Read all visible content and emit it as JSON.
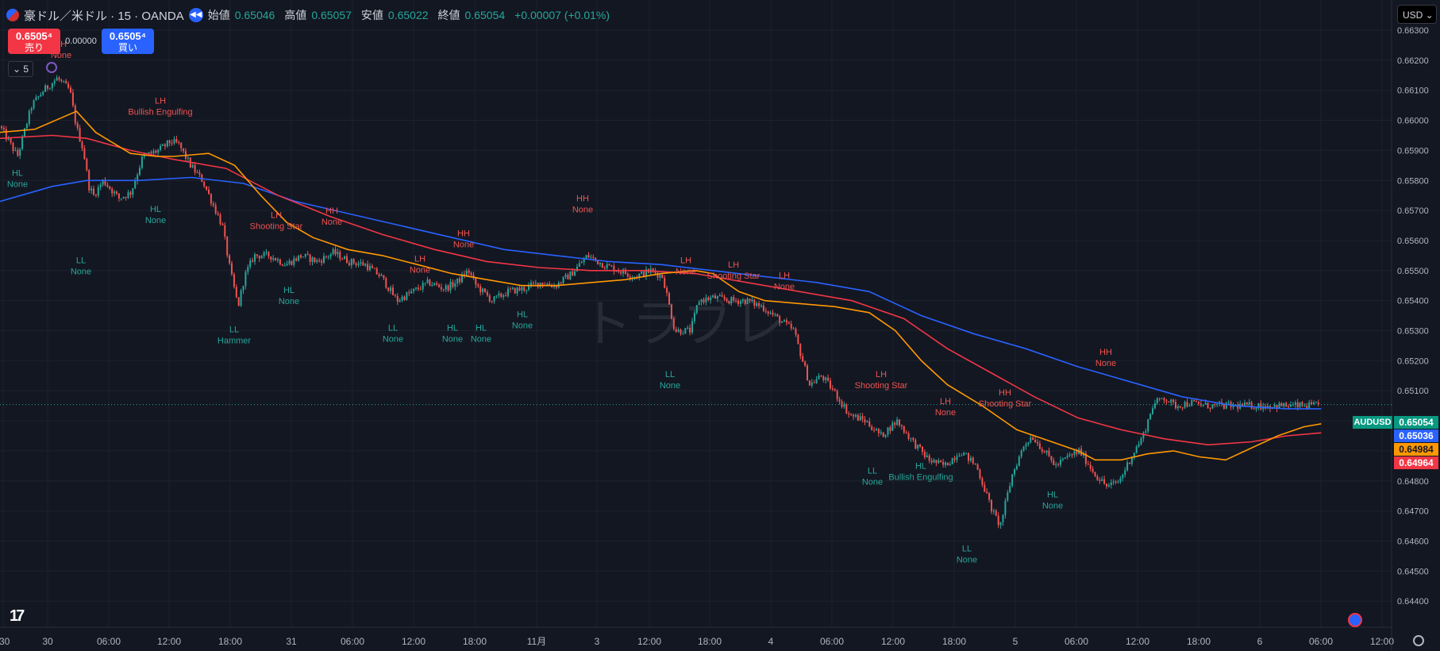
{
  "header": {
    "symbol": "豪ドル／米ドル · 15 · OANDA",
    "ohlc": [
      {
        "label": "始値",
        "value": "0.65046"
      },
      {
        "label": "高値",
        "value": "0.65057"
      },
      {
        "label": "安値",
        "value": "0.65022"
      },
      {
        "label": "終値",
        "value": "0.65054"
      }
    ],
    "change": "+0.00007 (+0.01%)"
  },
  "trade": {
    "sell_price": "0.6505⁴",
    "sell_label": "売り",
    "spread": "0.00000",
    "buy_price": "0.6505⁴",
    "buy_label": "買い"
  },
  "interval_value": "5",
  "currency_selector": "USD",
  "logo_text": "17",
  "watermark": "トラブレ",
  "price_labels": {
    "symbol": "AUDUSD",
    "last": "0.65054",
    "ma_blue": "0.65036",
    "ma_orange": "0.64984",
    "ma_red": "0.64964"
  },
  "colors": {
    "background": "#131722",
    "grid": "#1e222d",
    "up": "#26a69a",
    "down": "#ef5350",
    "ma_fast": "#ff9800",
    "ma_mid": "#f23645",
    "ma_slow": "#2962ff"
  },
  "chart_data": {
    "type": "candlestick",
    "ylim": [
      0.6444,
      0.6631
    ],
    "y_ticks": [
      "0.66300",
      "0.66200",
      "0.66100",
      "0.66000",
      "0.65900",
      "0.65800",
      "0.65700",
      "0.65600",
      "0.65500",
      "0.65400",
      "0.65300",
      "0.65200",
      "0.65100",
      "0.65000",
      "0.64900",
      "0.64800",
      "0.64700",
      "0.64600",
      "0.64500",
      "0.64400"
    ],
    "x_ticks": [
      ":30",
      "30",
      "06:00",
      "12:00",
      "18:00",
      "31",
      "06:00",
      "12:00",
      "18:00",
      "11月",
      "3",
      "12:00",
      "18:00",
      "4",
      "06:00",
      "12:00",
      "18:00",
      "5",
      "06:00",
      "12:00",
      "18:00",
      "6",
      "06:00",
      "12:00"
    ],
    "price_path": [
      [
        0,
        0.6598
      ],
      [
        22,
        0.6588
      ],
      [
        40,
        0.6605
      ],
      [
        55,
        0.661
      ],
      [
        72,
        0.6614
      ],
      [
        88,
        0.661
      ],
      [
        96,
        0.6598
      ],
      [
        105,
        0.659
      ],
      [
        112,
        0.6578
      ],
      [
        118,
        0.6575
      ],
      [
        130,
        0.658
      ],
      [
        150,
        0.6574
      ],
      [
        165,
        0.6576
      ],
      [
        180,
        0.6588
      ],
      [
        200,
        0.659
      ],
      [
        215,
        0.6593
      ],
      [
        225,
        0.6592
      ],
      [
        240,
        0.6585
      ],
      [
        255,
        0.658
      ],
      [
        265,
        0.6574
      ],
      [
        280,
        0.6565
      ],
      [
        290,
        0.655
      ],
      [
        300,
        0.6538
      ],
      [
        308,
        0.6548
      ],
      [
        320,
        0.6555
      ],
      [
        340,
        0.6555
      ],
      [
        360,
        0.6552
      ],
      [
        380,
        0.6555
      ],
      [
        400,
        0.6553
      ],
      [
        420,
        0.6556
      ],
      [
        440,
        0.6553
      ],
      [
        460,
        0.6552
      ],
      [
        480,
        0.6548
      ],
      [
        500,
        0.654
      ],
      [
        520,
        0.6543
      ],
      [
        540,
        0.6546
      ],
      [
        560,
        0.6544
      ],
      [
        575,
        0.6546
      ],
      [
        590,
        0.655
      ],
      [
        600,
        0.6545
      ],
      [
        620,
        0.654
      ],
      [
        640,
        0.6543
      ],
      [
        660,
        0.6544
      ],
      [
        680,
        0.6546
      ],
      [
        700,
        0.6545
      ],
      [
        720,
        0.6549
      ],
      [
        740,
        0.6555
      ],
      [
        760,
        0.6552
      ],
      [
        780,
        0.655
      ],
      [
        800,
        0.6548
      ],
      [
        820,
        0.655
      ],
      [
        835,
        0.6548
      ],
      [
        850,
        0.653
      ],
      [
        870,
        0.653
      ],
      [
        880,
        0.654
      ],
      [
        900,
        0.6541
      ],
      [
        920,
        0.654
      ],
      [
        940,
        0.654
      ],
      [
        960,
        0.6538
      ],
      [
        980,
        0.6534
      ],
      [
        1000,
        0.653
      ],
      [
        1020,
        0.6512
      ],
      [
        1035,
        0.6515
      ],
      [
        1050,
        0.651
      ],
      [
        1070,
        0.6502
      ],
      [
        1090,
        0.65
      ],
      [
        1110,
        0.6495
      ],
      [
        1130,
        0.65
      ],
      [
        1150,
        0.6493
      ],
      [
        1170,
        0.6487
      ],
      [
        1190,
        0.6485
      ],
      [
        1210,
        0.649
      ],
      [
        1230,
        0.6485
      ],
      [
        1250,
        0.647
      ],
      [
        1260,
        0.6465
      ],
      [
        1275,
        0.6482
      ],
      [
        1290,
        0.6492
      ],
      [
        1300,
        0.6495
      ],
      [
        1315,
        0.649
      ],
      [
        1330,
        0.6485
      ],
      [
        1345,
        0.6488
      ],
      [
        1360,
        0.649
      ],
      [
        1380,
        0.6482
      ],
      [
        1395,
        0.6478
      ],
      [
        1410,
        0.648
      ],
      [
        1425,
        0.6488
      ],
      [
        1440,
        0.6495
      ],
      [
        1452,
        0.6505
      ],
      [
        1465,
        0.6508
      ],
      [
        1480,
        0.6505
      ],
      [
        1500,
        0.6506
      ],
      [
        1520,
        0.6505
      ]
    ],
    "ma_fast": [
      [
        0,
        0.6596
      ],
      [
        40,
        0.6597
      ],
      [
        88,
        0.6603
      ],
      [
        110,
        0.6596
      ],
      [
        150,
        0.6589
      ],
      [
        180,
        0.6588
      ],
      [
        200,
        0.6588
      ],
      [
        240,
        0.6589
      ],
      [
        270,
        0.6585
      ],
      [
        300,
        0.6575
      ],
      [
        330,
        0.6566
      ],
      [
        360,
        0.6561
      ],
      [
        400,
        0.6557
      ],
      [
        440,
        0.6555
      ],
      [
        480,
        0.6552
      ],
      [
        520,
        0.6549
      ],
      [
        560,
        0.6547
      ],
      [
        600,
        0.6545
      ],
      [
        640,
        0.6545
      ],
      [
        680,
        0.6546
      ],
      [
        720,
        0.6547
      ],
      [
        760,
        0.6549
      ],
      [
        800,
        0.655
      ],
      [
        820,
        0.6549
      ],
      [
        850,
        0.6543
      ],
      [
        880,
        0.654
      ],
      [
        920,
        0.6539
      ],
      [
        960,
        0.6538
      ],
      [
        1000,
        0.6536
      ],
      [
        1030,
        0.653
      ],
      [
        1060,
        0.652
      ],
      [
        1090,
        0.6512
      ],
      [
        1130,
        0.6505
      ],
      [
        1170,
        0.6497
      ],
      [
        1210,
        0.6493
      ],
      [
        1240,
        0.649
      ],
      [
        1260,
        0.6487
      ],
      [
        1290,
        0.6487
      ],
      [
        1320,
        0.6489
      ],
      [
        1350,
        0.649
      ],
      [
        1380,
        0.6488
      ],
      [
        1410,
        0.6487
      ],
      [
        1440,
        0.6491
      ],
      [
        1470,
        0.6495
      ],
      [
        1500,
        0.6498
      ],
      [
        1520,
        0.6499
      ]
    ],
    "ma_mid": [
      [
        0,
        0.6594
      ],
      [
        60,
        0.6595
      ],
      [
        100,
        0.6594
      ],
      [
        150,
        0.659
      ],
      [
        200,
        0.6587
      ],
      [
        260,
        0.6584
      ],
      [
        320,
        0.6575
      ],
      [
        380,
        0.6568
      ],
      [
        440,
        0.6562
      ],
      [
        500,
        0.6557
      ],
      [
        560,
        0.6553
      ],
      [
        620,
        0.6551
      ],
      [
        680,
        0.655
      ],
      [
        740,
        0.655
      ],
      [
        800,
        0.6549
      ],
      [
        860,
        0.6546
      ],
      [
        920,
        0.6543
      ],
      [
        980,
        0.654
      ],
      [
        1040,
        0.6534
      ],
      [
        1090,
        0.6524
      ],
      [
        1140,
        0.6516
      ],
      [
        1190,
        0.6508
      ],
      [
        1240,
        0.6501
      ],
      [
        1290,
        0.6497
      ],
      [
        1340,
        0.6494
      ],
      [
        1390,
        0.6492
      ],
      [
        1440,
        0.6493
      ],
      [
        1480,
        0.6495
      ],
      [
        1520,
        0.6496
      ]
    ],
    "ma_slow": [
      [
        0,
        0.6573
      ],
      [
        60,
        0.6578
      ],
      [
        100,
        0.658
      ],
      [
        160,
        0.658
      ],
      [
        220,
        0.6581
      ],
      [
        280,
        0.6579
      ],
      [
        340,
        0.6573
      ],
      [
        400,
        0.6569
      ],
      [
        460,
        0.6565
      ],
      [
        520,
        0.6561
      ],
      [
        580,
        0.6557
      ],
      [
        640,
        0.6555
      ],
      [
        700,
        0.6553
      ],
      [
        760,
        0.6552
      ],
      [
        820,
        0.655
      ],
      [
        880,
        0.6548
      ],
      [
        940,
        0.6546
      ],
      [
        1000,
        0.6543
      ],
      [
        1060,
        0.6535
      ],
      [
        1120,
        0.6529
      ],
      [
        1180,
        0.6524
      ],
      [
        1240,
        0.6518
      ],
      [
        1300,
        0.6513
      ],
      [
        1360,
        0.6508
      ],
      [
        1420,
        0.6505
      ],
      [
        1480,
        0.6504
      ],
      [
        1520,
        0.6504
      ]
    ],
    "last_price": 0.65054,
    "annotations": [
      {
        "t": 77,
        "p": 0.66245,
        "lines": [
          "LH",
          "None"
        ],
        "kind": "bear"
      },
      {
        "t": 22,
        "p": 0.65815,
        "lines": [
          "HL",
          "None"
        ],
        "kind": "bull"
      },
      {
        "t": 202,
        "p": 0.66055,
        "lines": [
          "LH",
          "Bullish Engulfing"
        ],
        "kind": "bear"
      },
      {
        "t": 102,
        "p": 0.65525,
        "lines": [
          "LL",
          "None"
        ],
        "kind": "bull"
      },
      {
        "t": 196,
        "p": 0.65695,
        "lines": [
          "HL",
          "None"
        ],
        "kind": "bull"
      },
      {
        "t": 348,
        "p": 0.65675,
        "lines": [
          "LH",
          "Shooting Star"
        ],
        "kind": "bear"
      },
      {
        "t": 418,
        "p": 0.6569,
        "lines": [
          "HH",
          "None"
        ],
        "kind": "bear"
      },
      {
        "t": 295,
        "p": 0.65295,
        "lines": [
          "LL",
          "Hammer"
        ],
        "kind": "bull"
      },
      {
        "t": 364,
        "p": 0.65425,
        "lines": [
          "HL",
          "None"
        ],
        "kind": "bull"
      },
      {
        "t": 529,
        "p": 0.6553,
        "lines": [
          "LH",
          "None"
        ],
        "kind": "bear"
      },
      {
        "t": 584,
        "p": 0.65615,
        "lines": [
          "HH",
          "None"
        ],
        "kind": "bear"
      },
      {
        "t": 495,
        "p": 0.653,
        "lines": [
          "LL",
          "None"
        ],
        "kind": "bull"
      },
      {
        "t": 570,
        "p": 0.653,
        "lines": [
          "HL",
          "None"
        ],
        "kind": "bull"
      },
      {
        "t": 606,
        "p": 0.653,
        "lines": [
          "HL",
          "None"
        ],
        "kind": "bull"
      },
      {
        "t": 658,
        "p": 0.65345,
        "lines": [
          "HL",
          "None"
        ],
        "kind": "bull"
      },
      {
        "t": 734,
        "p": 0.6573,
        "lines": [
          "HH",
          "None"
        ],
        "kind": "bear"
      },
      {
        "t": 864,
        "p": 0.65525,
        "lines": [
          "LH",
          "None"
        ],
        "kind": "bear"
      },
      {
        "t": 924,
        "p": 0.6551,
        "lines": [
          "LH",
          "Shooting Star"
        ],
        "kind": "bear"
      },
      {
        "t": 988,
        "p": 0.65475,
        "lines": [
          "LH",
          "None"
        ],
        "kind": "bear"
      },
      {
        "t": 844,
        "p": 0.65145,
        "lines": [
          "LL",
          "None"
        ],
        "kind": "bull"
      },
      {
        "t": 1110,
        "p": 0.65145,
        "lines": [
          "LH",
          "Shooting Star"
        ],
        "kind": "bear"
      },
      {
        "t": 1191,
        "p": 0.65055,
        "lines": [
          "LH",
          "None"
        ],
        "kind": "bear"
      },
      {
        "t": 1266,
        "p": 0.65085,
        "lines": [
          "HH",
          "Shooting Star"
        ],
        "kind": "bear"
      },
      {
        "t": 1099,
        "p": 0.64825,
        "lines": [
          "LL",
          "None"
        ],
        "kind": "bull"
      },
      {
        "t": 1160,
        "p": 0.6484,
        "lines": [
          "HL",
          "Bullish Engulfing"
        ],
        "kind": "bull"
      },
      {
        "t": 1218,
        "p": 0.64565,
        "lines": [
          "LL",
          "None"
        ],
        "kind": "bull"
      },
      {
        "t": 1326,
        "p": 0.64745,
        "lines": [
          "HL",
          "None"
        ],
        "kind": "bull"
      },
      {
        "t": 1393,
        "p": 0.6522,
        "lines": [
          "HH",
          "None"
        ],
        "kind": "bear"
      }
    ]
  }
}
